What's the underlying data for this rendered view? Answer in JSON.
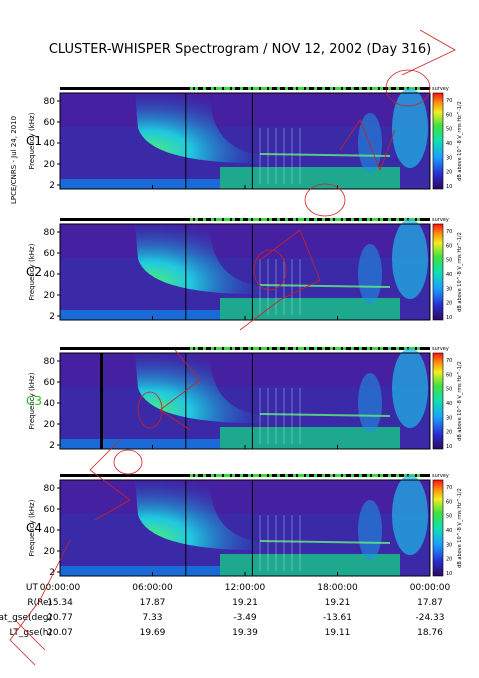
{
  "side_label": "LPCE/CNRS - Jul 24, 2010",
  "chart_data": {
    "type": "heatmap",
    "title": "CLUSTER-WHISPER Spectrogram / NOV 12, 2002 (Day 316)",
    "ylabel": "Frequency (kHz)",
    "yticks": [
      "80",
      "60",
      "40",
      "20",
      "2"
    ],
    "ylim": [
      2,
      80
    ],
    "colorbar_label": "dB above 10^-8 V_rms Hz^-1/2",
    "colorbar_ticks": [
      "70",
      "60",
      "50",
      "40",
      "30",
      "20",
      "10"
    ],
    "colorbar_range": [
      10,
      70
    ],
    "mode_tag": "survey",
    "panels": [
      {
        "name": "C1",
        "color": "#000000"
      },
      {
        "name": "C2",
        "color": "#000000"
      },
      {
        "name": "C3",
        "color": "#22bb22"
      },
      {
        "name": "C4",
        "color": "#000000"
      }
    ],
    "x_hours": [
      0,
      6,
      12,
      18,
      24
    ],
    "ephemeris": {
      "rows": [
        {
          "label": "UT",
          "values": [
            "00:00:00",
            "06:00:00",
            "12:00:00",
            "18:00:00",
            "00:00:00"
          ]
        },
        {
          "label": "R(Re)",
          "values": [
            "15.34",
            "17.87",
            "19.21",
            "19.21",
            "17.87"
          ]
        },
        {
          "label": "Lat_gse(deg)",
          "values": [
            "20.77",
            "7.33",
            "-3.49",
            "-13.61",
            "-24.33"
          ]
        },
        {
          "label": "LT_gse(h)",
          "values": [
            "20.07",
            "19.69",
            "19.39",
            "19.11",
            "18.76"
          ]
        }
      ]
    }
  }
}
